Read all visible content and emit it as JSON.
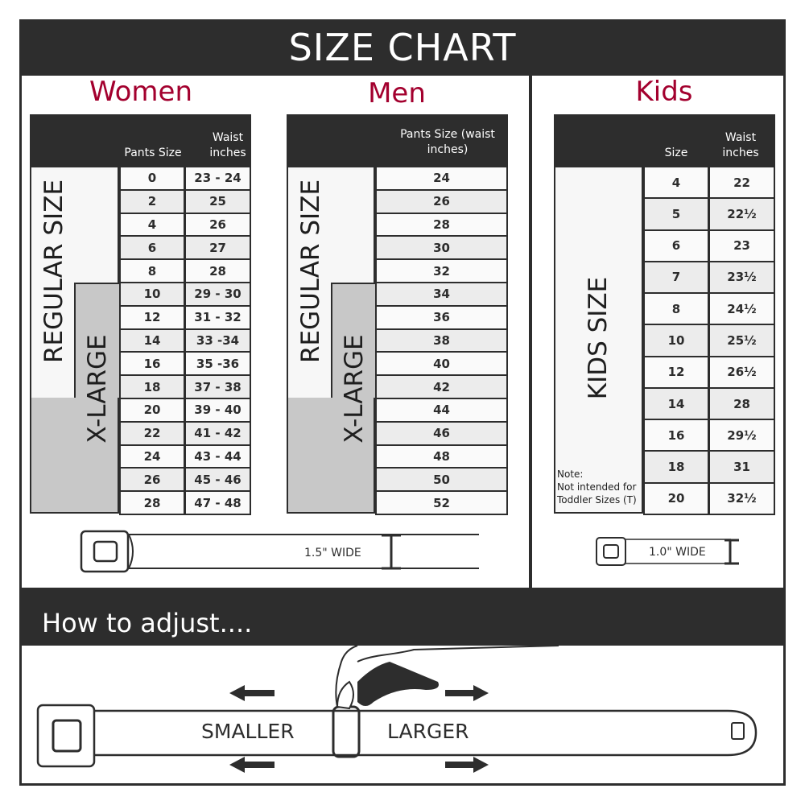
{
  "title": "SIZE CHART",
  "women": {
    "heading": "Women",
    "col_pants": "Pants Size",
    "col_waist": "Waist inches",
    "regular_label": "REGULAR SIZE",
    "xlarge_label": "X-LARGE",
    "rows": [
      [
        "0",
        "23 - 24"
      ],
      [
        "2",
        "25"
      ],
      [
        "4",
        "26"
      ],
      [
        "6",
        "27"
      ],
      [
        "8",
        "28"
      ],
      [
        "10",
        "29 - 30"
      ],
      [
        "12",
        "31 - 32"
      ],
      [
        "14",
        "33 -34"
      ],
      [
        "16",
        "35 -36"
      ],
      [
        "18",
        "37 - 38"
      ],
      [
        "20",
        "39 - 40"
      ],
      [
        "22",
        "41 - 42"
      ],
      [
        "24",
        "43 - 44"
      ],
      [
        "26",
        "45 - 46"
      ],
      [
        "28",
        "47 - 48"
      ]
    ],
    "width_label": "1.5\" WIDE"
  },
  "men": {
    "heading": "Men",
    "col_pants": "Pants Size (waist inches)",
    "regular_label": "REGULAR SIZE",
    "xlarge_label": "X-LARGE",
    "rows": [
      "24",
      "26",
      "28",
      "30",
      "32",
      "34",
      "36",
      "38",
      "40",
      "42",
      "44",
      "46",
      "48",
      "50",
      "52"
    ]
  },
  "kids": {
    "heading": "Kids",
    "col_size": "Size",
    "col_waist": "Waist inches",
    "size_label": "KIDS SIZE",
    "rows": [
      [
        "4",
        "22"
      ],
      [
        "5",
        "22½"
      ],
      [
        "6",
        "23"
      ],
      [
        "7",
        "23½"
      ],
      [
        "8",
        "24½"
      ],
      [
        "10",
        "25½"
      ],
      [
        "12",
        "26½"
      ],
      [
        "14",
        "28"
      ],
      [
        "16",
        "29½"
      ],
      [
        "18",
        "31"
      ],
      [
        "20",
        "32½"
      ]
    ],
    "note_title": "Note:",
    "note_text": "Not intended for Toddler Sizes (T)",
    "width_label": "1.0\" WIDE"
  },
  "adjust": {
    "heading": "How to adjust....",
    "smaller": "SMALLER",
    "larger": "LARGER"
  },
  "colors": {
    "dark": "#2d2d2d",
    "accent": "#a3002e",
    "xlarge_fill": "#c8c8c8"
  }
}
